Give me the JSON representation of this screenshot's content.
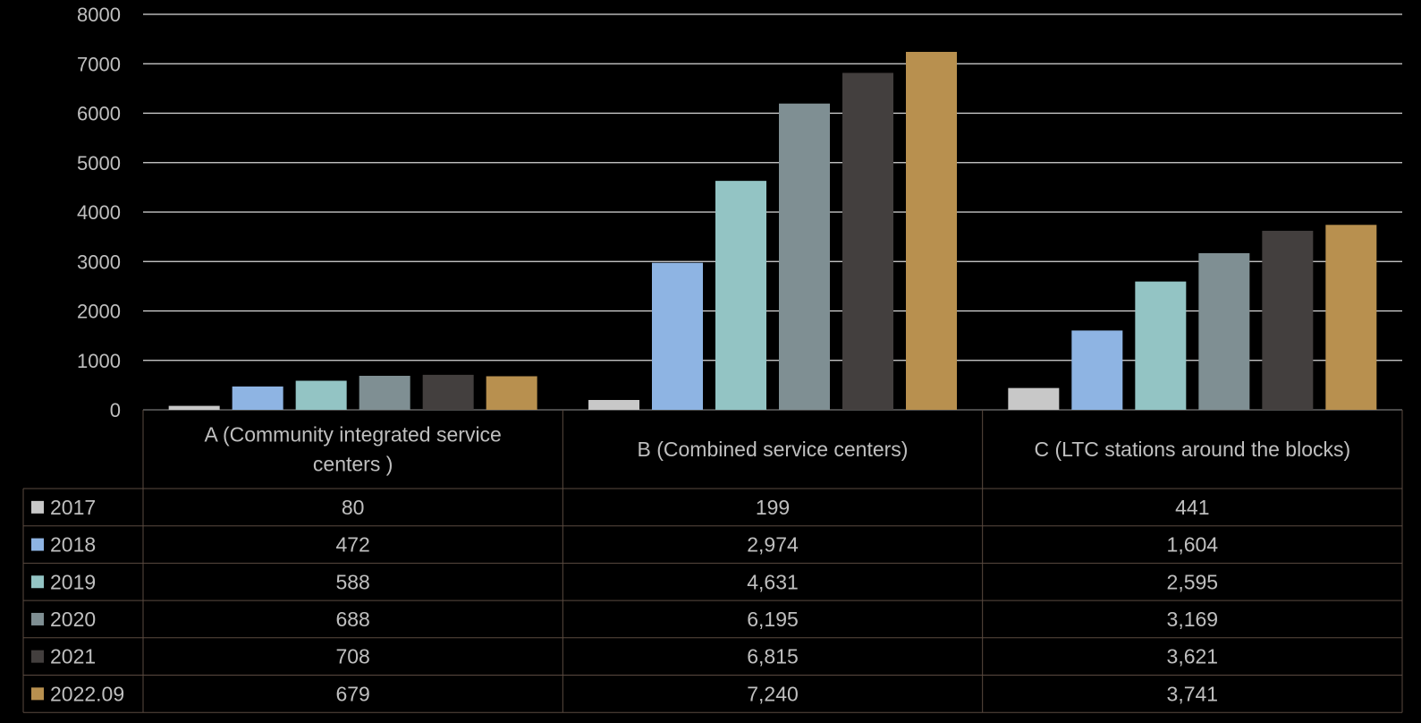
{
  "chart_data": {
    "type": "bar",
    "title": "",
    "xlabel": "",
    "ylabel": "",
    "ylim": [
      0,
      8000
    ],
    "yticks": [
      "0",
      "1000",
      "2000",
      "3000",
      "4000",
      "5000",
      "6000",
      "7000",
      "8000"
    ],
    "grid": true,
    "legend": "data-table-left",
    "categories": [
      {
        "lines": [
          "A (Community integrated service",
          "centers )"
        ]
      },
      {
        "lines": [
          "B (Combined service centers)"
        ]
      },
      {
        "lines": [
          "C (LTC stations around the blocks)"
        ]
      }
    ],
    "series": [
      {
        "name": "2017",
        "color": "#c8c8c8",
        "values": [
          80,
          199,
          441
        ],
        "labels": [
          "80",
          "199",
          "441"
        ]
      },
      {
        "name": "2018",
        "color": "#8eb4e3",
        "values": [
          472,
          2974,
          1604
        ],
        "labels": [
          "472",
          "2,974",
          "1,604"
        ]
      },
      {
        "name": "2019",
        "color": "#93c4c4",
        "values": [
          588,
          4631,
          2595
        ],
        "labels": [
          "588",
          "4,631",
          "2,595"
        ]
      },
      {
        "name": "2020",
        "color": "#7f8f93",
        "values": [
          688,
          6195,
          3169
        ],
        "labels": [
          "688",
          "6,195",
          "3,169"
        ]
      },
      {
        "name": "2021",
        "color": "#433f3e",
        "values": [
          708,
          6815,
          3621
        ],
        "labels": [
          "708",
          "6,815",
          "3,621"
        ]
      },
      {
        "name": "2022.09",
        "color": "#b8904f",
        "values": [
          679,
          7240,
          3741
        ],
        "labels": [
          "679",
          "7,240",
          "3,741"
        ]
      }
    ]
  }
}
